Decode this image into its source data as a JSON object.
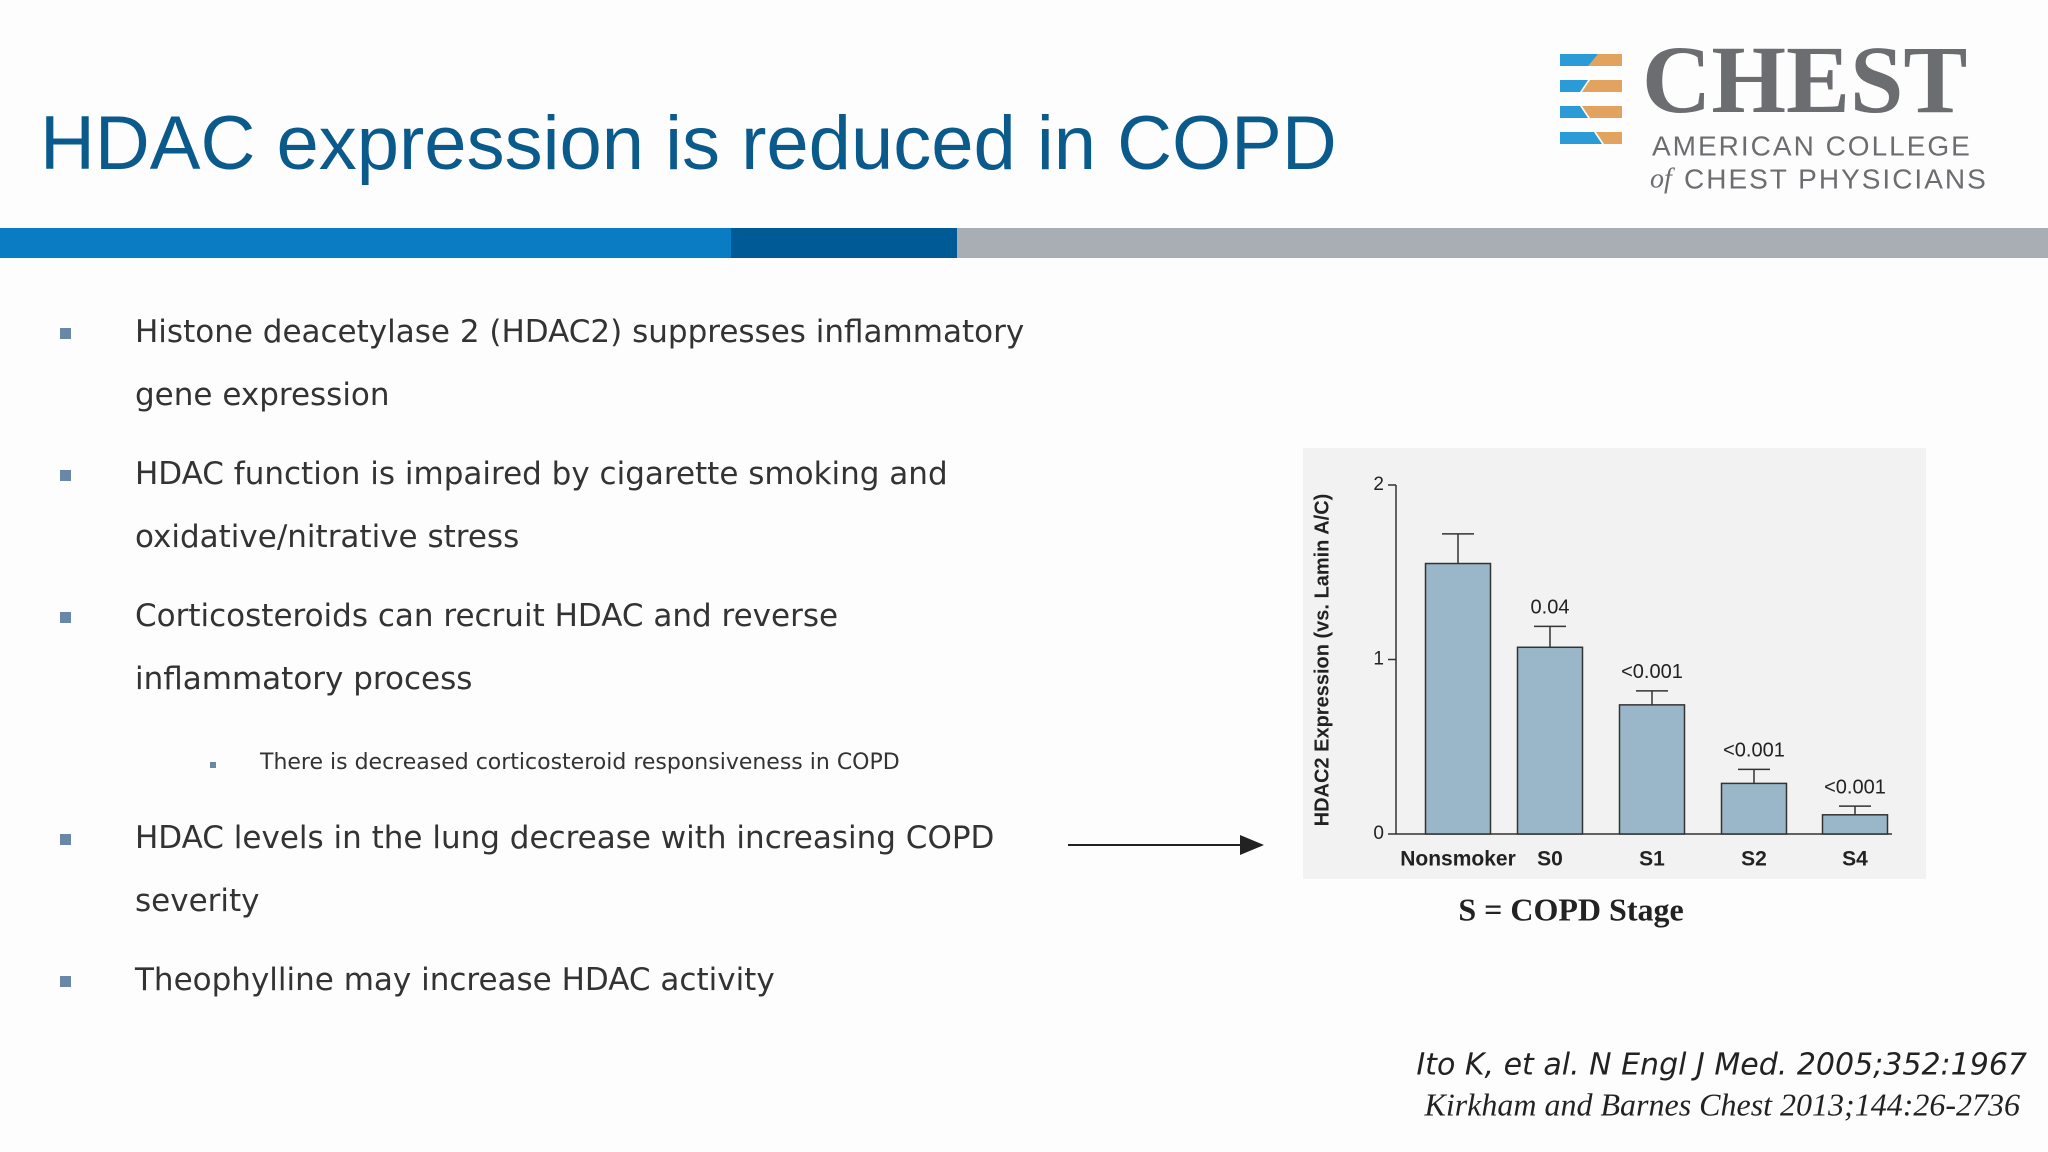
{
  "header": {
    "title": "HDAC expression is reduced in COPD"
  },
  "logo": {
    "name": "CHEST",
    "line1": "AMERICAN COLLEGE",
    "line2_prefix": "of",
    "line2": "CHEST PHYSICIANS"
  },
  "bullets": [
    {
      "lines": [
        "Histone deacetylase 2 (HDAC2) suppresses inflammatory",
        "gene expression"
      ]
    },
    {
      "lines": [
        "HDAC function is impaired by cigarette smoking and",
        "oxidative/nitrative stress"
      ]
    },
    {
      "lines": [
        "Corticosteroids can recruit HDAC and reverse",
        "inflammatory process"
      ],
      "sub": [
        "There is decreased corticosteroid responsiveness in COPD"
      ]
    },
    {
      "lines": [
        "HDAC levels in the lung decrease with increasing COPD",
        "severity"
      ]
    },
    {
      "lines": [
        "Theophylline may increase HDAC activity"
      ]
    }
  ],
  "chart_data": {
    "type": "bar",
    "y_label": "HDAC2 Expression (vs. Lamin A/C)",
    "categories": [
      "Nonsmoker",
      "S0",
      "S1",
      "S2",
      "S4"
    ],
    "values": [
      1.55,
      1.07,
      0.74,
      0.29,
      0.11
    ],
    "errors": [
      0.17,
      0.12,
      0.08,
      0.08,
      0.05
    ],
    "annotations": [
      null,
      "0.04",
      "<0.001",
      "<0.001",
      "<0.001"
    ],
    "color": "#9ab7c9",
    "ylim": [
      0,
      2
    ],
    "yticks": [
      0,
      1,
      2
    ]
  },
  "caption": "S = COPD Stage",
  "citations": [
    "Ito K, et al. N Engl J Med. 2005;352:1967",
    "Kirkham and Barnes Chest 2013;144:26-2736"
  ]
}
